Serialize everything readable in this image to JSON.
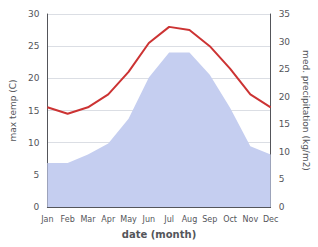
{
  "chart_data": {
    "type": "line",
    "categories": [
      "Jan",
      "Feb",
      "Mar",
      "Apr",
      "May",
      "Jun",
      "Jul",
      "Aug",
      "Sep",
      "Oct",
      "Nov",
      "Dec"
    ],
    "series": [
      {
        "type": "area",
        "color": "#c5cef0",
        "axis": "y2",
        "values": [
          8.0,
          8.0,
          9.5,
          11.5,
          16.0,
          23.5,
          28.0,
          28.0,
          24.0,
          18.0,
          11.0,
          9.5
        ]
      },
      {
        "type": "line",
        "color": "#cc3333",
        "values": [
          15.5,
          14.5,
          15.5,
          17.5,
          21.0,
          25.5,
          28.0,
          27.5,
          25.0,
          21.5,
          17.5,
          15.5
        ]
      }
    ],
    "xlabel": "date (month)",
    "ylabel": "max temp (C)",
    "y2label": "med. precipitation (kg/m2)",
    "ylim": [
      0,
      30
    ],
    "yticks": [
      0,
      5,
      10,
      15,
      20,
      25,
      30
    ],
    "y2lim": [
      0,
      35
    ],
    "y2ticks": [
      0,
      5,
      10,
      15,
      20,
      25,
      30,
      35
    ],
    "grid": true
  }
}
